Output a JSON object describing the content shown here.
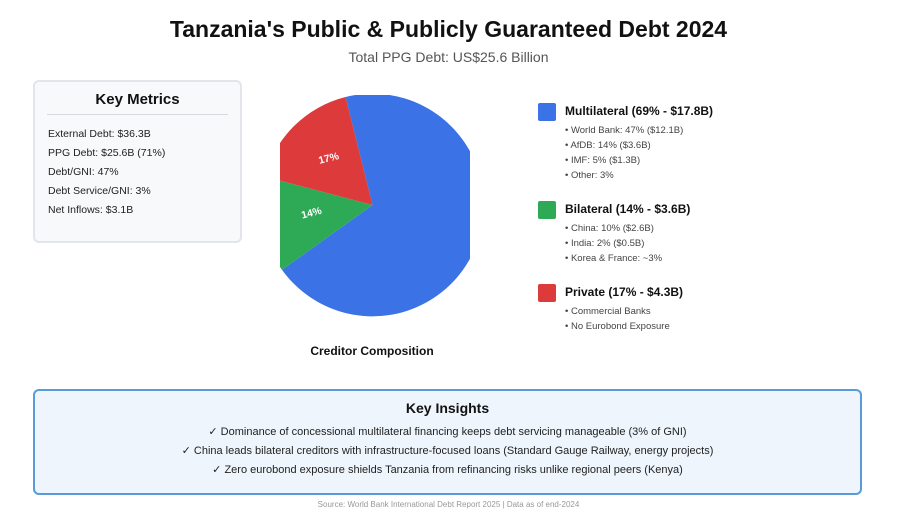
{
  "header": {
    "title": "Tanzania's Public & Publicly Guaranteed Debt 2024",
    "subtitle": "Total PPG Debt: US$25.6 Billion"
  },
  "metrics": {
    "title": "Key Metrics",
    "items": [
      "External Debt: $36.3B",
      "PPG Debt: $25.6B (71%)",
      "Debt/GNI: 47%",
      "Debt Service/GNI: 3%",
      "Net Inflows: $3.1B"
    ]
  },
  "chart_data": {
    "type": "pie",
    "title": "Creditor Composition",
    "slices": [
      {
        "label": "Multilateral",
        "value": 69,
        "amount_usd_billion": 17.8,
        "color": "#3b72e6",
        "data_label": ""
      },
      {
        "label": "Bilateral",
        "value": 14,
        "amount_usd_billion": 3.6,
        "color": "#2eaa57",
        "data_label": "14%"
      },
      {
        "label": "Private",
        "value": 17,
        "amount_usd_billion": 4.3,
        "color": "#dd3b3b",
        "data_label": "17%"
      }
    ]
  },
  "legend": [
    {
      "title": "Multilateral (69% - $17.8B)",
      "color": "#3b72e6",
      "items": [
        "• World Bank: 47% ($12.1B)",
        "• AfDB: 14% ($3.6B)",
        "• IMF: 5% ($1.3B)",
        "• Other: 3%"
      ]
    },
    {
      "title": "Bilateral (14% - $3.6B)",
      "color": "#2eaa57",
      "items": [
        "• China: 10% ($2.6B)",
        "• India: 2% ($0.5B)",
        "• Korea & France: ~3%"
      ]
    },
    {
      "title": "Private (17% - $4.3B)",
      "color": "#dd3b3b",
      "items": [
        "• Commercial Banks",
        "• No Eurobond Exposure"
      ]
    }
  ],
  "insights": {
    "title": "Key Insights",
    "items": [
      "✓ Dominance of concessional multilateral financing keeps debt servicing manageable (3% of GNI)",
      "✓ China leads bilateral creditors with infrastructure-focused loans (Standard Gauge Railway, energy projects)",
      "✓ Zero eurobond exposure shields Tanzania from refinancing risks unlike regional peers (Kenya)"
    ]
  },
  "footer": {
    "source": "Source: World Bank International Debt Report 2025 | Data as of end-2024"
  }
}
